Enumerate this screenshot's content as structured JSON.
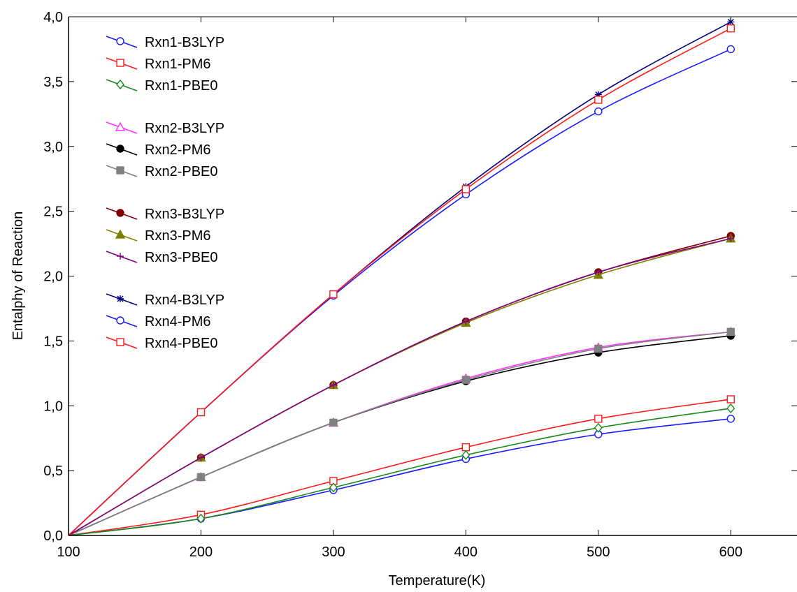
{
  "chart_data": {
    "type": "line",
    "title": "",
    "xlabel": "Temperature(K)",
    "ylabel": "Entalphy of Reaction",
    "xlim": [
      100,
      650
    ],
    "ylim": [
      0,
      4
    ],
    "x_ticks": [
      100,
      200,
      300,
      400,
      500,
      600
    ],
    "x_tick_labels": [
      "100",
      "200",
      "300",
      "400",
      "500",
      "600"
    ],
    "y_ticks": [
      0,
      0.5,
      1,
      1.5,
      2,
      2.5,
      3,
      3.5,
      4
    ],
    "y_tick_labels": [
      "0,0",
      "0,5",
      "1,0",
      "1,5",
      "2,0",
      "2,5",
      "3,0",
      "3,5",
      "4,0"
    ],
    "grid": false,
    "legend_position": "top-left",
    "x": [
      100,
      200,
      300,
      400,
      500,
      600
    ],
    "series": [
      {
        "name": "Rxn1-B3LYP",
        "color": "#1a1aff",
        "marker": "circle-open",
        "values": [
          0,
          0.13,
          0.35,
          0.59,
          0.78,
          0.9
        ]
      },
      {
        "name": "Rxn1-PM6",
        "color": "#ff1a1a",
        "marker": "square-open",
        "values": [
          0,
          0.16,
          0.42,
          0.68,
          0.9,
          1.05
        ]
      },
      {
        "name": "Rxn1-PBE0",
        "color": "#1a8a1a",
        "marker": "diamond-open",
        "values": [
          0,
          0.13,
          0.37,
          0.62,
          0.83,
          0.98
        ]
      },
      {
        "name": "Rxn2-B3LYP",
        "color": "#ff33ff",
        "marker": "triangle-open",
        "values": [
          0,
          0.45,
          0.87,
          1.21,
          1.45,
          1.57
        ]
      },
      {
        "name": "Rxn2-PM6",
        "color": "#000000",
        "marker": "circle-filled",
        "values": [
          0,
          0.45,
          0.87,
          1.19,
          1.41,
          1.54
        ]
      },
      {
        "name": "Rxn2-PBE0",
        "color": "#808080",
        "marker": "square-filled",
        "values": [
          0,
          0.45,
          0.87,
          1.2,
          1.44,
          1.57
        ]
      },
      {
        "name": "Rxn3-B3LYP",
        "color": "#800000",
        "marker": "circle-filled",
        "values": [
          0,
          0.6,
          1.16,
          1.65,
          2.03,
          2.31
        ]
      },
      {
        "name": "Rxn3-PM6",
        "color": "#808000",
        "marker": "triangle-filled",
        "values": [
          0,
          0.6,
          1.16,
          1.64,
          2.01,
          2.29
        ]
      },
      {
        "name": "Rxn3-PBE0",
        "color": "#800080",
        "marker": "plus",
        "values": [
          0,
          0.6,
          1.16,
          1.65,
          2.03,
          2.29
        ]
      },
      {
        "name": "Rxn4-B3LYP",
        "color": "#000080",
        "marker": "asterisk",
        "values": [
          0,
          0.95,
          1.86,
          2.69,
          3.4,
          3.96
        ]
      },
      {
        "name": "Rxn4-PM6",
        "color": "#1a1aff",
        "marker": "circle-open",
        "values": [
          0,
          0.95,
          1.85,
          2.63,
          3.27,
          3.75
        ]
      },
      {
        "name": "Rxn4-PBE0",
        "color": "#ff1a1a",
        "marker": "square-open",
        "values": [
          0,
          0.95,
          1.86,
          2.67,
          3.36,
          3.91
        ]
      }
    ]
  }
}
